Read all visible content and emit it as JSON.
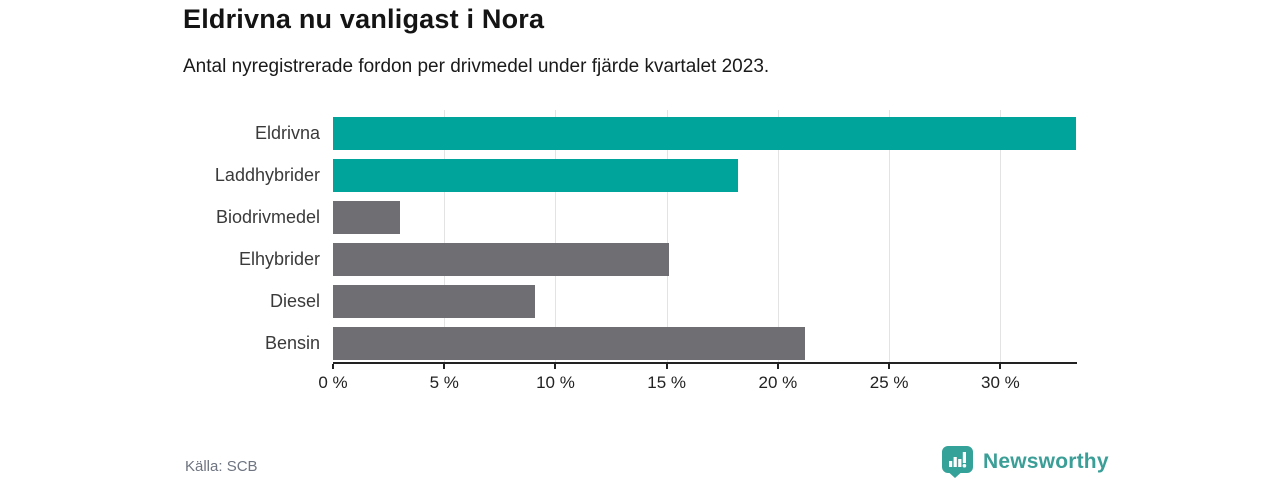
{
  "title": "Eldrivna nu vanligast i Nora",
  "subtitle": "Antal nyregistrerade fordon per drivmedel under fjärde kvartalet 2023.",
  "source": "Källa: SCB",
  "brand": {
    "name": "Newsworthy",
    "icon": "bar-chart-speech-bubble-icon",
    "color": "#3b9e97"
  },
  "colors": {
    "highlight_bar": "#00A49A",
    "default_bar": "#6E6E73",
    "gridline": "#E3E3E3",
    "axis": "#222222",
    "title_text": "#141414",
    "muted_text": "#6E7480"
  },
  "chart_data": {
    "type": "bar",
    "orientation": "horizontal",
    "title": "Eldrivna nu vanligast i Nora",
    "subtitle": "Antal nyregistrerade fordon per drivmedel under fjärde kvartalet 2023.",
    "categories": [
      "Eldrivna",
      "Laddhybrider",
      "Biodrivmedel",
      "Elhybrider",
      "Diesel",
      "Bensin"
    ],
    "values": [
      33.4,
      18.2,
      3.0,
      15.1,
      9.1,
      21.2
    ],
    "unit": "%",
    "bar_colors": [
      "#00A49A",
      "#00A49A",
      "#6E6E73",
      "#6E6E73",
      "#6E6E73",
      "#6E6E73"
    ],
    "highlighted_categories": [
      "Eldrivna",
      "Laddhybrider"
    ],
    "xlim": [
      0,
      33.4
    ],
    "xticks": [
      0,
      5,
      10,
      15,
      20,
      25,
      30
    ],
    "xtick_labels": [
      "0 %",
      "5 %",
      "10 %",
      "15 %",
      "20 %",
      "25 %",
      "30 %"
    ],
    "grid": "vertical",
    "xlabel": "",
    "ylabel": "",
    "legend": "none",
    "source": "Källa: SCB"
  }
}
